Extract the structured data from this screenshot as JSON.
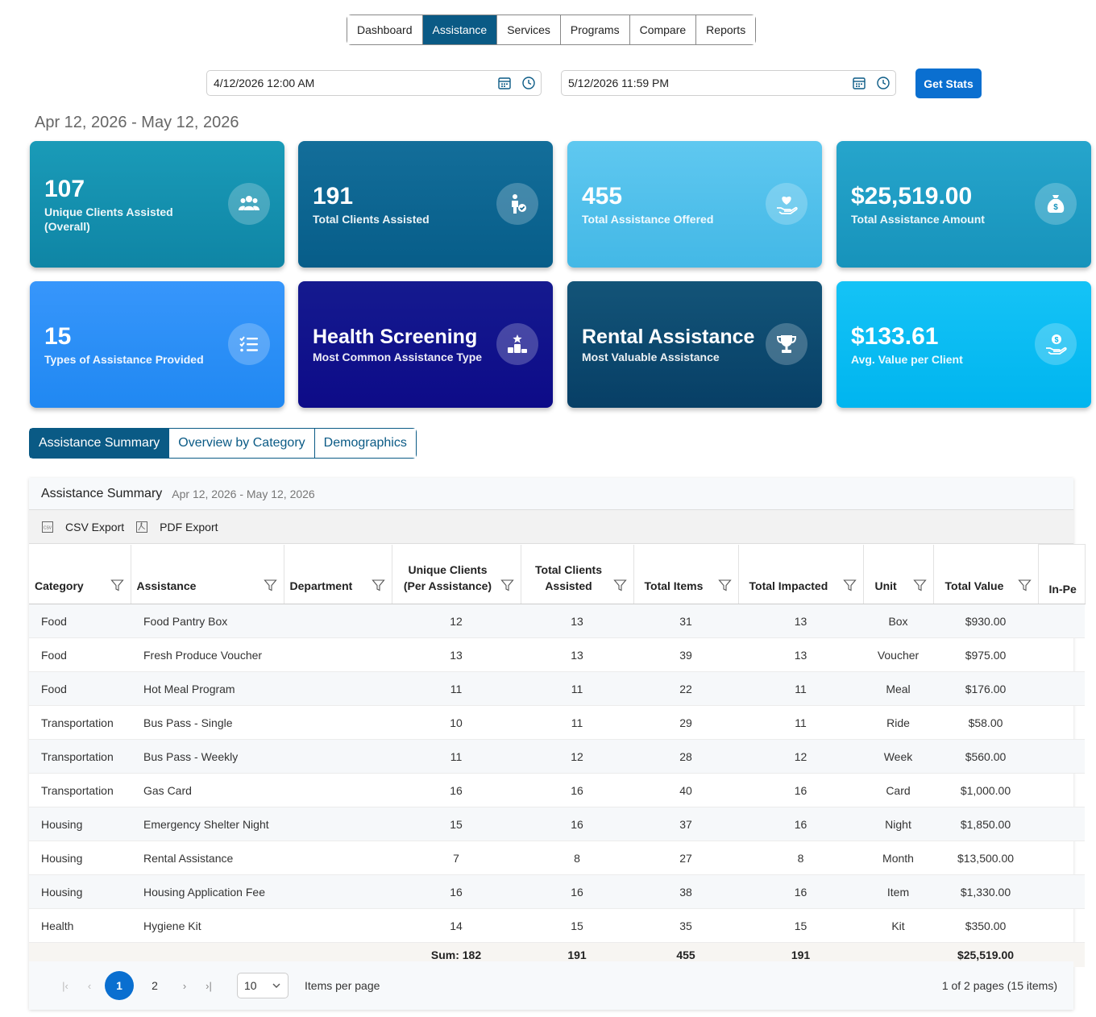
{
  "nav": {
    "items": [
      "Dashboard",
      "Assistance",
      "Services",
      "Programs",
      "Compare",
      "Reports"
    ],
    "active": "Assistance"
  },
  "dates": {
    "start": "4/12/2026 12:00 AM",
    "end": "5/12/2026 11:59 PM",
    "button": "Get Stats"
  },
  "range_title": "Apr 12, 2026 - May 12, 2026",
  "cards": [
    {
      "value": "107",
      "label": "Unique Clients Assisted (Overall)",
      "icon": "users-icon",
      "color": "#1290ad"
    },
    {
      "value": "191",
      "label": "Total Clients Assisted",
      "icon": "person-check-icon",
      "color": "#0a5f8d"
    },
    {
      "value": "455",
      "label": "Total Assistance Offered",
      "icon": "hand-heart-icon",
      "color": "#52c0ea"
    },
    {
      "value": "$25,519.00",
      "label": "Total Assistance Amount",
      "icon": "money-bag-icon",
      "color": "#1d9cc4"
    },
    {
      "value": "15",
      "label": "Types of Assistance Provided",
      "icon": "list-check-icon",
      "color": "#2c8ff5"
    },
    {
      "value": "Health Screening",
      "label": "Most Common Assistance Type",
      "icon": "podium-icon",
      "color": "#12138c"
    },
    {
      "value": "Rental Assistance",
      "label": "Most Valuable Assistance",
      "icon": "trophy-icon",
      "color": "#0e4a6e"
    },
    {
      "value": "$133.61",
      "label": "Avg. Value per Client",
      "icon": "hand-dollar-icon",
      "color": "#0bbff3"
    }
  ],
  "tabs": [
    "Assistance Summary",
    "Overview by Category",
    "Demographics"
  ],
  "panel": {
    "title": "Assistance Summary",
    "range": "Apr 12, 2026 - May 12, 2026",
    "csv": "CSV Export",
    "pdf": "PDF Export"
  },
  "columns": [
    "Category",
    "Assistance",
    "Department",
    "Unique Clients (Per Assistance)",
    "Total Clients Assisted",
    "Total Items",
    "Total Impacted",
    "Unit",
    "Total Value",
    "In-Pe"
  ],
  "rows": [
    [
      "Food",
      "Food Pantry Box",
      "",
      "12",
      "13",
      "31",
      "13",
      "Box",
      "$930.00"
    ],
    [
      "Food",
      "Fresh Produce Voucher",
      "",
      "13",
      "13",
      "39",
      "13",
      "Voucher",
      "$975.00"
    ],
    [
      "Food",
      "Hot Meal Program",
      "",
      "11",
      "11",
      "22",
      "11",
      "Meal",
      "$176.00"
    ],
    [
      "Transportation",
      "Bus Pass - Single",
      "",
      "10",
      "11",
      "29",
      "11",
      "Ride",
      "$58.00"
    ],
    [
      "Transportation",
      "Bus Pass - Weekly",
      "",
      "11",
      "12",
      "28",
      "12",
      "Week",
      "$560.00"
    ],
    [
      "Transportation",
      "Gas Card",
      "",
      "16",
      "16",
      "40",
      "16",
      "Card",
      "$1,000.00"
    ],
    [
      "Housing",
      "Emergency Shelter Night",
      "",
      "15",
      "16",
      "37",
      "16",
      "Night",
      "$1,850.00"
    ],
    [
      "Housing",
      "Rental Assistance",
      "",
      "7",
      "8",
      "27",
      "8",
      "Month",
      "$13,500.00"
    ],
    [
      "Housing",
      "Housing Application Fee",
      "",
      "16",
      "16",
      "38",
      "16",
      "Item",
      "$1,330.00"
    ],
    [
      "Health",
      "Hygiene Kit",
      "",
      "14",
      "15",
      "35",
      "15",
      "Kit",
      "$350.00"
    ]
  ],
  "footer": {
    "unique": "Sum: 182",
    "clients": "191",
    "items": "455",
    "impacted": "191",
    "value": "$25,519.00"
  },
  "pager": {
    "pages": [
      "1",
      "2"
    ],
    "current": "1",
    "size": "10",
    "items_per_page": "Items per page",
    "info": "1 of 2 pages (15 items)"
  }
}
